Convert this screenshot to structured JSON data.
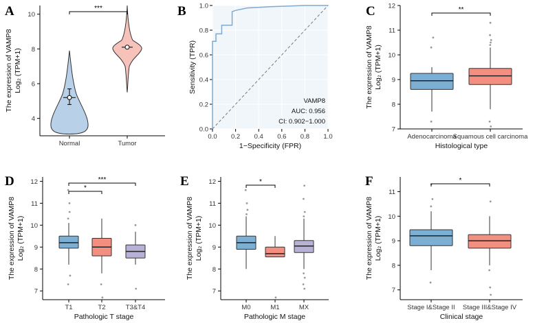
{
  "colors": {
    "blue": "#7bafd4",
    "blue_light": "#b8d0e8",
    "red": "#f28f80",
    "red_light": "#f6c2ba",
    "lavender": "#b7b1d6",
    "roc_line": "#7fa9cf",
    "roc_bg": "#f1f6fa",
    "outlier": "#999999"
  },
  "chart_data": [
    {
      "panel": "A",
      "type": "violin",
      "categories": [
        "Normal",
        "Tumor"
      ],
      "ylabel_line1": "The expression of VAMP8",
      "ylabel_line2": "Log₂ (TPM+1)",
      "ylim": [
        3,
        10.5
      ],
      "yticks": [
        4,
        6,
        8,
        10
      ],
      "series": [
        {
          "category": "Normal",
          "min": 3.1,
          "max": 7.9,
          "median": 5.2,
          "q1": 4.8,
          "q3": 5.7
        },
        {
          "category": "Tumor",
          "min": 5.5,
          "max": 10.5,
          "median": 8.1,
          "q1": 7.95,
          "q3": 8.25
        }
      ],
      "significance": [
        {
          "from": 0,
          "to": 1,
          "label": "***"
        }
      ]
    },
    {
      "panel": "B",
      "type": "line",
      "xlabel": "1−Specificity (FPR)",
      "ylabel": "Sensitivity (TPR)",
      "xlim": [
        0,
        1
      ],
      "ylim": [
        0,
        1
      ],
      "ticks": [
        "0.0",
        "0.2",
        "0.4",
        "0.6",
        "0.8",
        "1.0"
      ],
      "roc_points": [
        [
          0,
          0
        ],
        [
          0,
          0.71
        ],
        [
          0.03,
          0.71
        ],
        [
          0.03,
          0.77
        ],
        [
          0.08,
          0.77
        ],
        [
          0.08,
          0.84
        ],
        [
          0.17,
          0.84
        ],
        [
          0.17,
          0.95
        ],
        [
          0.2,
          0.96
        ],
        [
          0.3,
          0.98
        ],
        [
          0.5,
          0.99
        ],
        [
          0.8,
          1.0
        ],
        [
          1,
          1
        ]
      ],
      "annotation": [
        "VAMP8",
        "AUC: 0.956",
        "CI: 0.902−1.000"
      ]
    },
    {
      "panel": "C",
      "type": "box",
      "xlabel": "Histological type",
      "ylabel_line1": "The expression of VAMP8",
      "ylabel_line2": "Log₂ (TPM+1)",
      "ylim": [
        7,
        12
      ],
      "yticks": [
        7,
        8,
        9,
        10,
        11,
        12
      ],
      "boxes": [
        {
          "category": "Adenocarcinoma",
          "color": "blue",
          "lw": 7.7,
          "q1": 8.6,
          "median": 8.95,
          "q3": 9.25,
          "uw": 9.5,
          "outliers": [
            10.3,
            10.7,
            7.3
          ]
        },
        {
          "category": "Squamous cell carcinoma",
          "color": "red",
          "lw": 7.8,
          "q1": 8.8,
          "median": 9.15,
          "q3": 9.45,
          "uw": 10.3,
          "outliers": [
            10.4,
            10.5,
            10.6,
            10.8,
            11.3,
            7.3,
            7.1
          ]
        }
      ],
      "significance": [
        {
          "from": 0,
          "to": 1,
          "label": "**"
        }
      ]
    },
    {
      "panel": "D",
      "type": "box",
      "xlabel": "Pathologic T stage",
      "ylabel_line1": "The expression of VAMP8",
      "ylabel_line2": "Log₂ (TPM+1)",
      "ylim": [
        6.6,
        12.2
      ],
      "yticks": [
        7,
        8,
        9,
        10,
        11,
        12
      ],
      "boxes": [
        {
          "category": "T1",
          "color": "blue",
          "lw": 8.2,
          "q1": 8.95,
          "median": 9.2,
          "q3": 9.5,
          "uw": 10.1,
          "outliers": [
            10.3,
            10.6,
            11.0,
            11.6,
            7.7,
            7.3
          ]
        },
        {
          "category": "T2",
          "color": "red",
          "lw": 7.8,
          "q1": 8.6,
          "median": 9.0,
          "q3": 9.4,
          "uw": 10.3,
          "outliers": [
            7.3,
            6.7
          ]
        },
        {
          "category": "T3&T4",
          "color": "lavender",
          "lw": 8.2,
          "q1": 8.5,
          "median": 8.8,
          "q3": 9.1,
          "uw": 9.7,
          "outliers": [
            10.0,
            7.1
          ]
        }
      ],
      "significance": [
        {
          "from": 0,
          "to": 1,
          "label": "*"
        },
        {
          "from": 0,
          "to": 2,
          "label": "***"
        }
      ]
    },
    {
      "panel": "E",
      "type": "box",
      "xlabel": "Pathologic M stage",
      "ylabel_line1": "The expression of VAMP8",
      "ylabel_line2": "Log₂ (TPM+1)",
      "ylim": [
        6.6,
        12.2
      ],
      "yticks": [
        7,
        8,
        9,
        10,
        11,
        12
      ],
      "boxes": [
        {
          "category": "M0",
          "color": "blue",
          "lw": 8.0,
          "q1": 8.9,
          "median": 9.2,
          "q3": 9.5,
          "uw": 10.4,
          "outliers": [
            10.5,
            10.7,
            11.0,
            11.6
          ]
        },
        {
          "category": "M1",
          "color": "red",
          "lw": 8.55,
          "q1": 8.55,
          "median": 8.7,
          "q3": 9.0,
          "uw": 9.5,
          "outliers": [
            6.7
          ]
        },
        {
          "category": "MX",
          "color": "lavender",
          "lw": 8.0,
          "q1": 8.75,
          "median": 9.05,
          "q3": 9.3,
          "uw": 10.3,
          "outliers": [
            10.4,
            10.6,
            11.2,
            11.8,
            7.3,
            7.1,
            7.6,
            7.8
          ]
        }
      ],
      "significance": [
        {
          "from": 0,
          "to": 1,
          "label": "*"
        }
      ]
    },
    {
      "panel": "F",
      "type": "box",
      "xlabel": "Clinical stage",
      "ylabel_line1": "The expression of VAMP8",
      "ylabel_line2": "Log₂ (TPM+1)",
      "ylim": [
        6.6,
        11.6
      ],
      "yticks": [
        7,
        8,
        9,
        10,
        11
      ],
      "boxes": [
        {
          "category": "Stage I&Stage II",
          "color": "blue",
          "lw": 7.8,
          "q1": 8.8,
          "median": 9.2,
          "q3": 9.45,
          "uw": 10.2,
          "outliers": [
            10.4,
            10.7,
            11.3,
            7.3
          ]
        },
        {
          "category": "Stage III&Stage IV",
          "color": "red",
          "lw": 8.0,
          "q1": 8.7,
          "median": 9.0,
          "q3": 9.25,
          "uw": 10.0,
          "outliers": [
            10.6,
            7.8,
            7.1,
            6.8
          ]
        }
      ],
      "significance": [
        {
          "from": 0,
          "to": 1,
          "label": "*"
        }
      ]
    }
  ]
}
